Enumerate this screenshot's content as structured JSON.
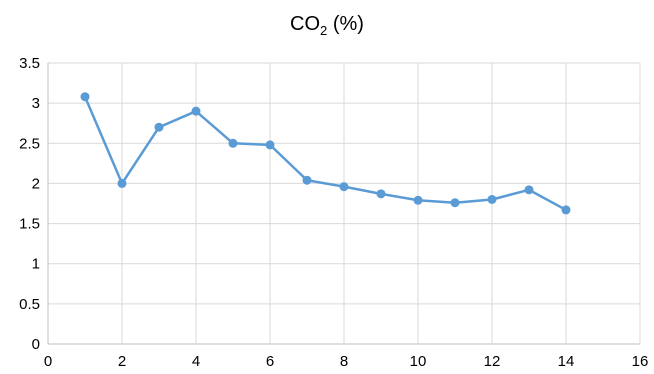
{
  "chart_data": {
    "type": "line",
    "title_main": "CO",
    "title_sub": "2",
    "title_tail": " (%)",
    "xlabel": "",
    "ylabel": "",
    "xlim": [
      0,
      16
    ],
    "ylim": [
      0,
      3.5
    ],
    "x_ticks": [
      0,
      2,
      4,
      6,
      8,
      10,
      12,
      14,
      16
    ],
    "y_ticks": [
      0,
      0.5,
      1,
      1.5,
      2,
      2.5,
      3,
      3.5
    ],
    "x_tick_labels": [
      "0",
      "2",
      "4",
      "6",
      "8",
      "10",
      "12",
      "14",
      "16"
    ],
    "y_tick_labels": [
      "0",
      "0.5",
      "1",
      "1.5",
      "2",
      "2.5",
      "3",
      "3.5"
    ],
    "grid": true,
    "legend": "none",
    "series": [
      {
        "color": "#5b9bd5",
        "x": [
          1,
          2,
          3,
          4,
          5,
          6,
          7,
          8,
          9,
          10,
          11,
          12,
          13,
          14
        ],
        "y": [
          3.08,
          2.0,
          2.7,
          2.9,
          2.5,
          2.48,
          2.04,
          1.96,
          1.87,
          1.79,
          1.76,
          1.8,
          1.92,
          1.67
        ]
      }
    ]
  }
}
